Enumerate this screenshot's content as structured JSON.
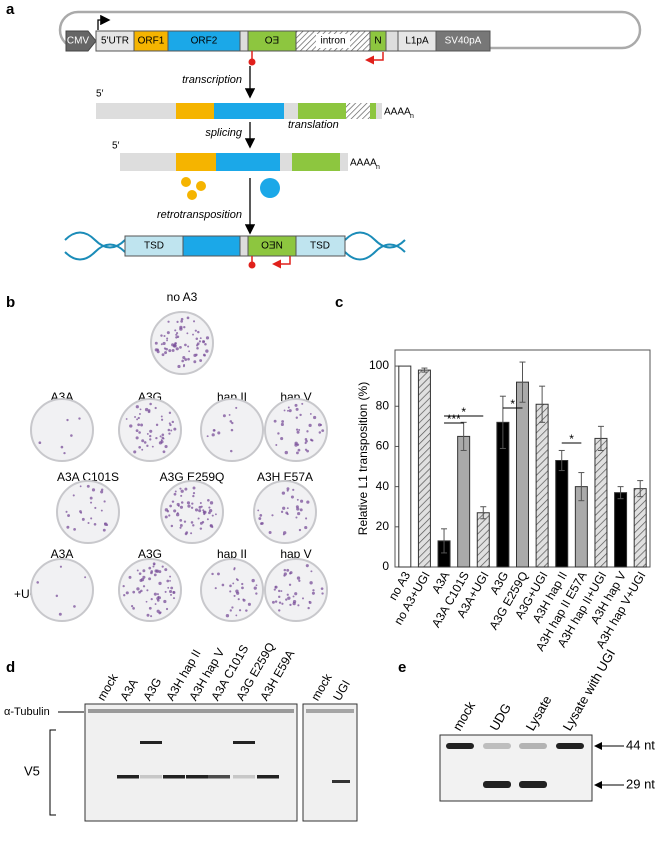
{
  "panel_labels": [
    "a",
    "b",
    "c",
    "d",
    "e"
  ],
  "construct": {
    "promoter": "CMV",
    "utr": "5'UTR",
    "orf1": "ORF1",
    "orf2": "ORF2",
    "neo_3": "OƎ",
    "intron": "intron",
    "neo_5": "N",
    "l1pa": "L1pA",
    "sv40pa": "SV40pA",
    "transcription": "transcription",
    "five_prime_1": "5′",
    "polya_1": "AAAA",
    "polya_n_1": "n",
    "splicing": "splicing",
    "translation": "translation",
    "five_prime_2": "5′",
    "polya_2": "AAAA",
    "polya_n_2": "n",
    "retrotransposition": "retrotransposition",
    "tsd_left": "TSD",
    "neo_full": "OƎN",
    "tsd_right": "TSD"
  },
  "plates": {
    "title": "no A3",
    "row1": [
      "A3A",
      "A3G",
      "hap II",
      "hap V"
    ],
    "row2": [
      "A3A C101S",
      "A3G E259Q",
      "A3H E57A"
    ],
    "row3": [
      "A3A",
      "A3G",
      "hap II",
      "hap V"
    ],
    "row3_label": "+UGI"
  },
  "chart_data": {
    "type": "bar",
    "y_label": "Relative L1 transposition (%)",
    "categories": [
      "no A3",
      "no A3+UGI",
      "A3A",
      "A3A C101S",
      "A3A+UGI",
      "A3G",
      "A3G E259Q",
      "A3G+UGI",
      "A3H hap II",
      "A3H hap II E57A",
      "A3H hap II+UGI",
      "A3H hap V",
      "A3H hap V+UGI"
    ],
    "values": [
      100,
      98,
      13,
      65,
      27,
      72,
      92,
      81,
      53,
      40,
      64,
      37,
      39
    ],
    "errors": [
      0,
      1,
      6,
      7,
      3,
      13,
      10,
      9,
      5,
      7,
      6,
      3,
      4
    ],
    "styles": [
      "white",
      "hatched",
      "black",
      "gray",
      "hatched",
      "black",
      "gray",
      "hatched",
      "black",
      "gray",
      "hatched",
      "black",
      "hatched"
    ],
    "annotations": [
      "*",
      "***",
      "*",
      "*"
    ],
    "ylim": [
      0,
      108
    ],
    "yticks": [
      0,
      20,
      40,
      60,
      80,
      100
    ],
    "grid": false
  },
  "western": {
    "lanes": [
      "mock",
      "A3A",
      "A3G",
      "A3H hap II",
      "A3H hap V",
      "A3A C101S",
      "A3G E259Q",
      "A3H E59A"
    ],
    "lanes_2": [
      "mock",
      "UGI"
    ],
    "tubulin": "α-Tubulin",
    "v5": "V5"
  },
  "gel": {
    "lanes": [
      "mock",
      "UDG",
      "Lysate",
      "Lysate with UGI"
    ],
    "band_top": "44 nt",
    "band_bottom": "29 nt"
  }
}
